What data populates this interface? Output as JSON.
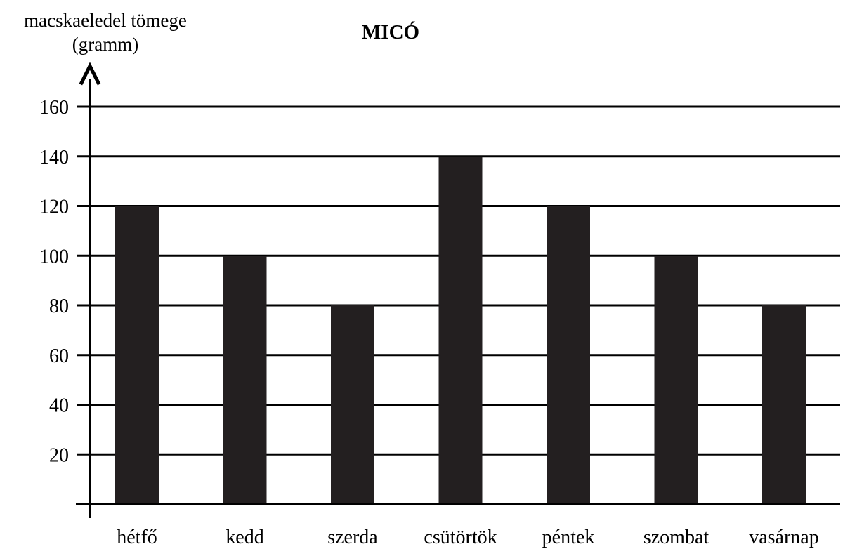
{
  "chart_data": {
    "type": "bar",
    "title": "MICÓ",
    "ylabel_line1": "macskaeledel tömege",
    "ylabel_line2": "(gramm)",
    "xlabel": "",
    "categories": [
      "hétfő",
      "kedd",
      "szerda",
      "csütörtök",
      "péntek",
      "szombat",
      "vasárnap"
    ],
    "values": [
      120,
      100,
      80,
      140,
      120,
      100,
      80
    ],
    "yticks": [
      20,
      40,
      60,
      80,
      100,
      120,
      140,
      160
    ],
    "ylim": [
      0,
      160
    ],
    "grid": true,
    "legend": "none",
    "bar_color": "#231f20"
  }
}
